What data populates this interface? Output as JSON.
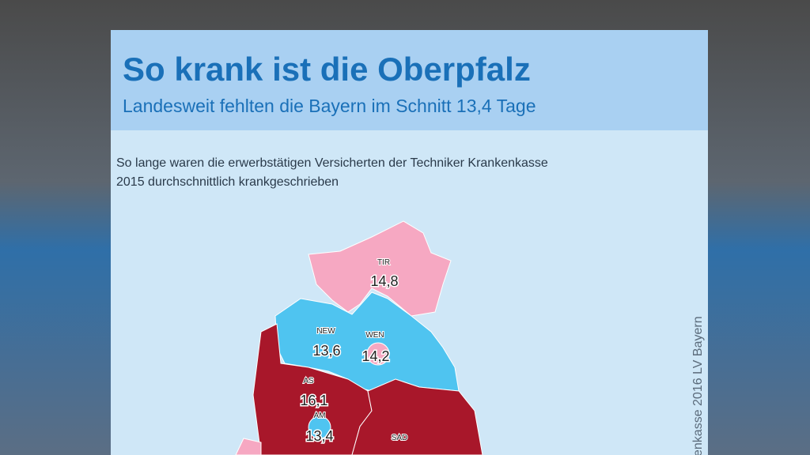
{
  "header": {
    "title": "So krank ist die Oberpfalz",
    "subtitle": "Landesweit fehlten die Bayern im Schnitt 13,4 Tage"
  },
  "description": [
    "So lange waren die erwerbstätigen Versicherten der Techniker Krankenkasse",
    "2015 durchschnittlich krankgeschrieben"
  ],
  "regions": [
    {
      "code": "TIR",
      "value": "14,8"
    },
    {
      "code": "NEW",
      "value": "13,6"
    },
    {
      "code": "WEN",
      "value": "14,2"
    },
    {
      "code": "AS",
      "value": "16,1"
    },
    {
      "code": "AM",
      "value": "13,4"
    },
    {
      "code": "SAD"
    }
  ],
  "source": "enkasse 2016 LV Bayern"
}
